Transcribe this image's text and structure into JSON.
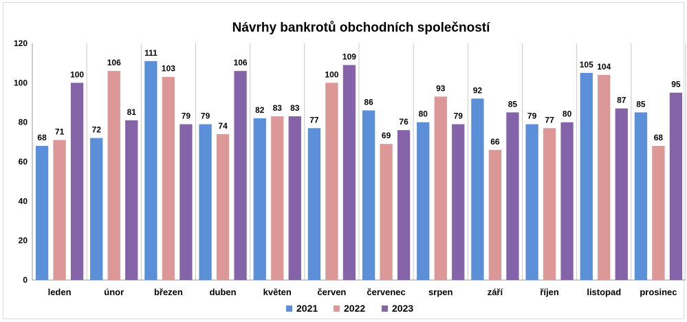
{
  "chart_data": {
    "type": "bar",
    "title": "Návrhy bankrotů obchodních společností",
    "xlabel": "",
    "ylabel": "",
    "ylim": [
      0,
      120
    ],
    "yticks": [
      0,
      20,
      40,
      60,
      80,
      100,
      120
    ],
    "grid": "vertical separators between categories",
    "legend_position": "bottom",
    "categories": [
      "leden",
      "únor",
      "březen",
      "duben",
      "květen",
      "červen",
      "červenec",
      "srpen",
      "září",
      "říjen",
      "listopad",
      "prosinec"
    ],
    "series": [
      {
        "name": "2021",
        "color": "#5B8FD8",
        "values": [
          68,
          72,
          111,
          79,
          82,
          77,
          86,
          80,
          92,
          79,
          105,
          85
        ]
      },
      {
        "name": "2022",
        "color": "#DB9896",
        "values": [
          71,
          106,
          103,
          74,
          83,
          100,
          69,
          93,
          66,
          77,
          104,
          68
        ]
      },
      {
        "name": "2023",
        "color": "#8563A8",
        "values": [
          100,
          81,
          79,
          106,
          83,
          109,
          76,
          79,
          85,
          80,
          87,
          95
        ]
      }
    ]
  }
}
